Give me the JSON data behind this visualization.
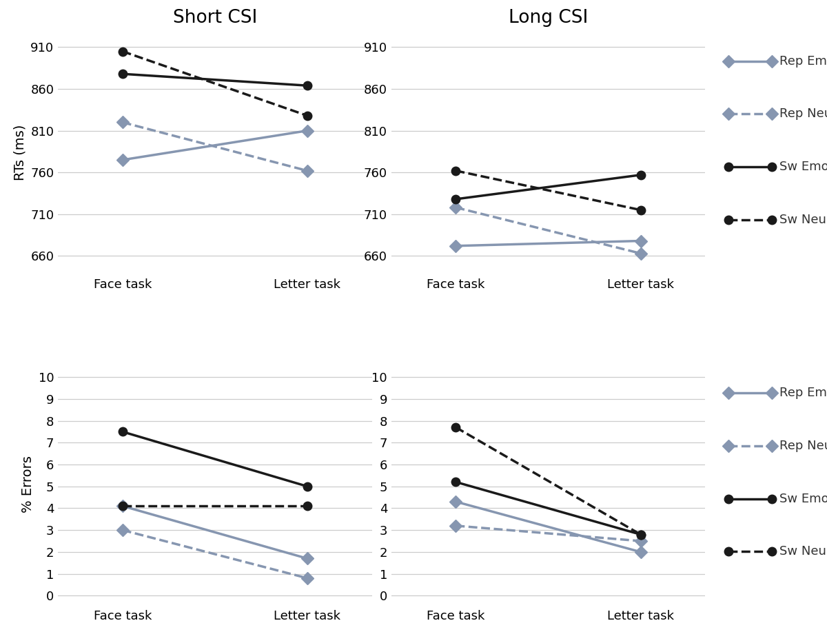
{
  "top_left": {
    "title": "Short CSI",
    "ylabel": "RTs (ms)",
    "yticks": [
      660,
      710,
      760,
      810,
      860,
      910
    ],
    "ylim": [
      640,
      928
    ],
    "series": [
      {
        "name": "Rep Emo",
        "face": 775,
        "letter": 810,
        "color": "#8696b0",
        "linestyle": "solid",
        "marker": "D"
      },
      {
        "name": "Rep Neu",
        "face": 820,
        "letter": 762,
        "color": "#8696b0",
        "linestyle": "dashed",
        "marker": "D"
      },
      {
        "name": "Sw Emo",
        "face": 878,
        "letter": 864,
        "color": "#1a1a1a",
        "linestyle": "solid",
        "marker": "o"
      },
      {
        "name": "Sw Neu",
        "face": 905,
        "letter": 828,
        "color": "#1a1a1a",
        "linestyle": "dashed",
        "marker": "o"
      }
    ]
  },
  "top_right": {
    "title": "Long CSI",
    "ylabel": "",
    "yticks": [
      660,
      710,
      760,
      810,
      860,
      910
    ],
    "ylim": [
      640,
      928
    ],
    "series": [
      {
        "name": "Rep Emo",
        "face": 672,
        "letter": 678,
        "color": "#8696b0",
        "linestyle": "solid",
        "marker": "D"
      },
      {
        "name": "Rep Neu",
        "face": 718,
        "letter": 663,
        "color": "#8696b0",
        "linestyle": "dashed",
        "marker": "D"
      },
      {
        "name": "Sw Emo",
        "face": 728,
        "letter": 757,
        "color": "#1a1a1a",
        "linestyle": "solid",
        "marker": "o"
      },
      {
        "name": "Sw Neu",
        "face": 762,
        "letter": 715,
        "color": "#1a1a1a",
        "linestyle": "dashed",
        "marker": "o"
      }
    ]
  },
  "bottom_left": {
    "title": "",
    "ylabel": "% Errors",
    "yticks": [
      0,
      1,
      2,
      3,
      4,
      5,
      6,
      7,
      8,
      9,
      10
    ],
    "ylim": [
      -0.4,
      10.6
    ],
    "series": [
      {
        "name": "Rep Emo",
        "face": 4.1,
        "letter": 1.7,
        "color": "#8696b0",
        "linestyle": "solid",
        "marker": "D"
      },
      {
        "name": "Rep Neu",
        "face": 3.0,
        "letter": 0.8,
        "color": "#8696b0",
        "linestyle": "dashed",
        "marker": "D"
      },
      {
        "name": "Sw Emo",
        "face": 7.5,
        "letter": 5.0,
        "color": "#1a1a1a",
        "linestyle": "solid",
        "marker": "o"
      },
      {
        "name": "Sw Neu",
        "face": 4.1,
        "letter": 4.1,
        "color": "#1a1a1a",
        "linestyle": "dashed",
        "marker": "o"
      }
    ]
  },
  "bottom_right": {
    "title": "",
    "ylabel": "",
    "yticks": [
      0,
      1,
      2,
      3,
      4,
      5,
      6,
      7,
      8,
      9,
      10
    ],
    "ylim": [
      -0.4,
      10.6
    ],
    "series": [
      {
        "name": "Rep Emo",
        "face": 4.3,
        "letter": 2.0,
        "color": "#8696b0",
        "linestyle": "solid",
        "marker": "D"
      },
      {
        "name": "Rep Neu",
        "face": 3.2,
        "letter": 2.5,
        "color": "#8696b0",
        "linestyle": "dashed",
        "marker": "D"
      },
      {
        "name": "Sw Emo",
        "face": 5.2,
        "letter": 2.8,
        "color": "#1a1a1a",
        "linestyle": "solid",
        "marker": "o"
      },
      {
        "name": "Sw Neu",
        "face": 7.7,
        "letter": 2.8,
        "color": "#1a1a1a",
        "linestyle": "dashed",
        "marker": "o"
      }
    ]
  },
  "legend_entries": [
    {
      "label": "Rep Emo",
      "color": "#8696b0",
      "linestyle": "solid",
      "marker": "D"
    },
    {
      "label": "Rep Neu",
      "color": "#8696b0",
      "linestyle": "dashed",
      "marker": "D"
    },
    {
      "label": "Sw Emo",
      "color": "#1a1a1a",
      "linestyle": "solid",
      "marker": "o"
    },
    {
      "label": "Sw Neu",
      "color": "#1a1a1a",
      "linestyle": "dashed",
      "marker": "o"
    }
  ],
  "xtick_labels": [
    "Face task",
    "Letter task"
  ],
  "background_color": "#ffffff",
  "grid_color": "#cccccc",
  "title_fontsize": 19,
  "label_fontsize": 14,
  "tick_fontsize": 13,
  "legend_fontsize": 13,
  "linewidth": 2.5,
  "markersize": 9
}
